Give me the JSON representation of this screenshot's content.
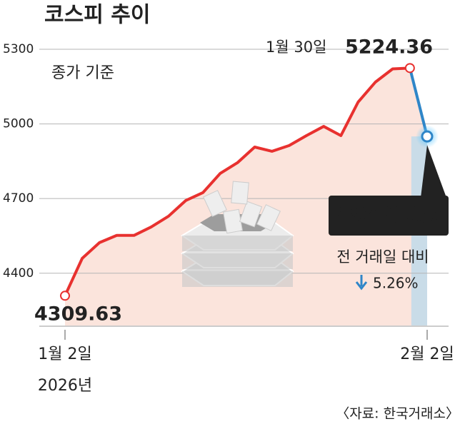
{
  "chart_data": {
    "type": "line",
    "title": "코스피 추이",
    "subtitle": "종가 기준",
    "categories": [
      "1월 2일",
      null,
      null,
      null,
      null,
      null,
      null,
      null,
      null,
      null,
      null,
      null,
      null,
      null,
      null,
      null,
      null,
      null,
      null,
      null,
      null,
      "2월 2일"
    ],
    "year_label": "2026년",
    "series": [
      {
        "name": "코스피",
        "color": "#e8312f",
        "values": [
          4309.63,
          4460,
          4523,
          4552,
          4552,
          4586,
          4629,
          4692,
          4724,
          4801,
          4844,
          4907,
          4890,
          4913,
          4953,
          4990,
          4953,
          5088,
          5168,
          5221,
          5224.36,
          4949.67
        ]
      }
    ],
    "highlight_color": "#2f86c8",
    "ylim": [
      4190,
      5320
    ],
    "yticks": [
      4400,
      4700,
      5000,
      5300
    ],
    "grid": true,
    "annotations": {
      "peak_date": "1월 30일",
      "change_label": "전 거래일 대비",
      "change": "5.26%"
    },
    "source": "〈자료: 한국거래소〉"
  }
}
